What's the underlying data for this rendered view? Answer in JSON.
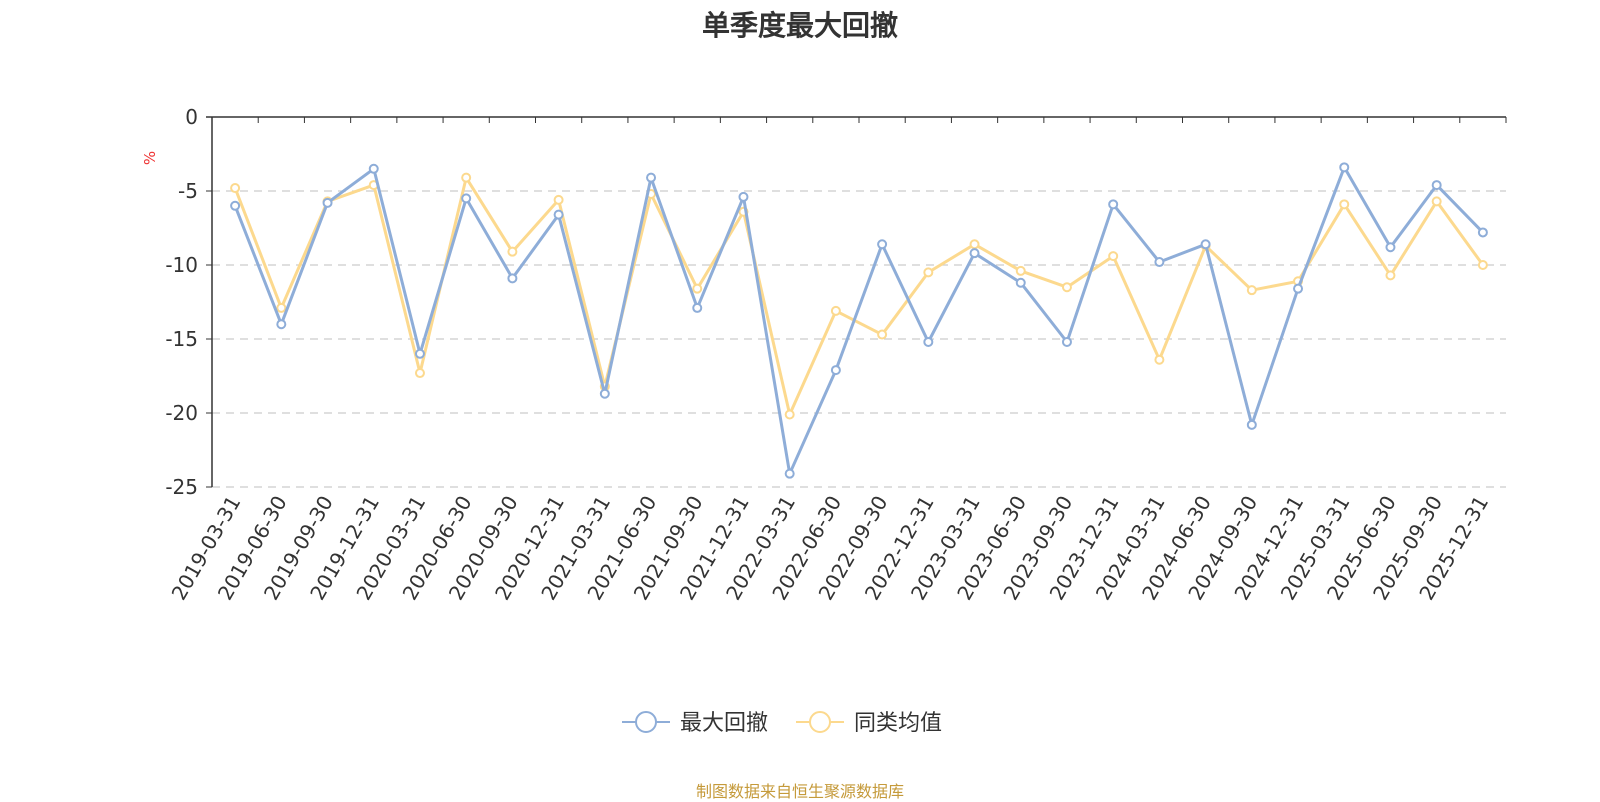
{
  "title": "单季度最大回撤",
  "footer": "制图数据来自恒生聚源数据库",
  "chart_data": {
    "type": "line",
    "title": "单季度最大回撤",
    "ylabel": "%",
    "xlabel": "",
    "ylim": [
      -25,
      0
    ],
    "yticks": [
      0,
      -5,
      -10,
      -15,
      -20,
      -25
    ],
    "grid": "horizontal dashed",
    "legend_position": "bottom-center",
    "categories": [
      "2019-03-31",
      "2019-06-30",
      "2019-09-30",
      "2019-12-31",
      "2020-03-31",
      "2020-06-30",
      "2020-09-30",
      "2020-12-31",
      "2021-03-31",
      "2021-06-30",
      "2021-09-30",
      "2021-12-31",
      "2022-03-31",
      "2022-06-30",
      "2022-09-30",
      "2022-12-31",
      "2023-03-31",
      "2023-06-30",
      "2023-09-30",
      "2023-12-31",
      "2024-03-31",
      "2024-06-30",
      "2024-09-30",
      "2024-12-31",
      "2025-03-31",
      "2025-06-30",
      "2025-09-30",
      "2025-12-31"
    ],
    "series": [
      {
        "name": "最大回撤",
        "color": "#8eadd8",
        "values": [
          -6.0,
          -14.0,
          -5.8,
          -3.5,
          -16.0,
          -5.5,
          -10.9,
          -6.6,
          -18.7,
          -4.1,
          -12.9,
          -5.4,
          -24.1,
          -17.1,
          -8.6,
          -15.2,
          -9.2,
          -11.2,
          -15.2,
          -5.9,
          -9.8,
          -8.6,
          -20.8,
          -11.6,
          -3.4,
          -8.8,
          -4.6,
          -7.8
        ]
      },
      {
        "name": "同类均值",
        "color": "#fcd98e",
        "values": [
          -4.8,
          -12.9,
          -5.7,
          -4.6,
          -17.3,
          -4.1,
          -9.1,
          -5.6,
          -18.2,
          -5.2,
          -11.6,
          -6.4,
          -20.1,
          -13.1,
          -14.7,
          -10.5,
          -8.6,
          -10.4,
          -11.5,
          -9.4,
          -16.4,
          -8.7,
          -11.7,
          -11.1,
          -5.9,
          -10.7,
          -5.7,
          -10.0
        ]
      }
    ]
  }
}
